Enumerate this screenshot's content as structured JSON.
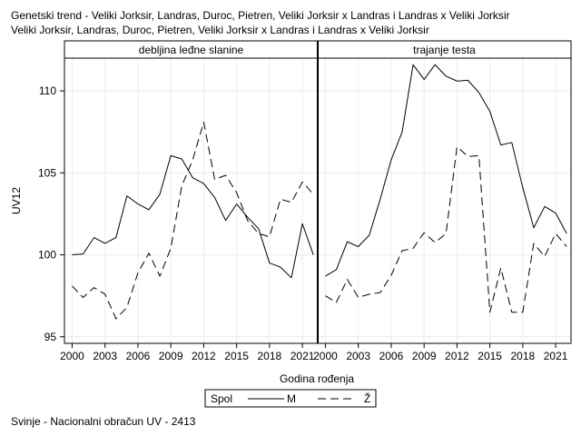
{
  "title_lines": [
    "Genetski trend - Veliki Jorksir, Landras, Duroc, Pietren, Veliki Jorksir x Landras i Landras x Veliki Jorksir",
    "Veliki Jorksir, Landras, Duroc, Pietren, Veliki Jorksir x Landras i Landras x Veliki Jorksir"
  ],
  "footnote": "Svinje - Nacionalni obračun UV - 2413",
  "legend": {
    "title": "Spol",
    "entries": [
      {
        "label": "M",
        "dash": "solid"
      },
      {
        "label": "Ž",
        "dash": "dashed"
      }
    ]
  },
  "chart_data": {
    "type": "line",
    "xlabel": "Godina rođenja",
    "ylabel": "UV12",
    "xlim": [
      1999.3,
      2022.4
    ],
    "ylim": [
      94.6,
      112
    ],
    "xticks": [
      2000,
      2003,
      2006,
      2009,
      2012,
      2015,
      2018,
      2021
    ],
    "yticks": [
      95,
      100,
      105,
      110
    ],
    "grid": true,
    "panels": [
      {
        "label": "debljina leđne slanine",
        "series": [
          {
            "name": "M",
            "dash": "solid",
            "x": [
              2000,
              2001,
              2002,
              2003,
              2004,
              2005,
              2006,
              2007,
              2008,
              2009,
              2010,
              2011,
              2012,
              2013,
              2014,
              2015,
              2016,
              2017,
              2018,
              2019,
              2020,
              2021,
              2022
            ],
            "y": [
              100.0,
              100.05,
              101.05,
              100.7,
              101.05,
              103.6,
              103.1,
              102.75,
              103.7,
              106.05,
              105.85,
              104.7,
              104.35,
              103.5,
              102.1,
              103.1,
              102.3,
              101.6,
              99.5,
              99.25,
              98.6,
              101.9,
              100.0
            ]
          },
          {
            "name": "Ž",
            "dash": "dashed",
            "x": [
              2000,
              2001,
              2002,
              2003,
              2004,
              2005,
              2006,
              2007,
              2008,
              2009,
              2010,
              2011,
              2012,
              2013,
              2014,
              2015,
              2016,
              2017,
              2018,
              2019,
              2020,
              2021,
              2022
            ],
            "y": [
              98.1,
              97.4,
              98.0,
              97.6,
              96.1,
              96.8,
              98.9,
              100.1,
              98.7,
              100.4,
              104.2,
              105.8,
              108.1,
              104.6,
              104.85,
              103.8,
              102.1,
              101.3,
              101.1,
              103.4,
              103.2,
              104.45,
              103.7
            ]
          }
        ]
      },
      {
        "label": "trajanje testa",
        "series": [
          {
            "name": "M",
            "dash": "solid",
            "x": [
              2000,
              2001,
              2002,
              2003,
              2004,
              2005,
              2006,
              2007,
              2008,
              2009,
              2010,
              2011,
              2012,
              2013,
              2014,
              2015,
              2016,
              2017,
              2018,
              2019,
              2020,
              2021,
              2022
            ],
            "y": [
              98.7,
              99.1,
              100.8,
              100.5,
              101.2,
              103.4,
              105.8,
              107.5,
              111.6,
              110.7,
              111.6,
              110.9,
              110.6,
              110.65,
              109.9,
              108.75,
              106.7,
              106.85,
              104.1,
              101.65,
              102.95,
              102.55,
              101.3
            ]
          },
          {
            "name": "Ž",
            "dash": "dashed",
            "x": [
              2000,
              2001,
              2002,
              2003,
              2004,
              2005,
              2006,
              2007,
              2008,
              2009,
              2010,
              2011,
              2012,
              2013,
              2014,
              2015,
              2016,
              2017,
              2018,
              2019,
              2020,
              2021,
              2022
            ],
            "y": [
              97.5,
              97.1,
              98.5,
              97.4,
              97.6,
              97.7,
              98.75,
              100.25,
              100.4,
              101.35,
              100.75,
              101.3,
              106.6,
              106.0,
              106.05,
              96.5,
              99.2,
              96.5,
              96.5,
              100.7,
              99.9,
              101.3,
              100.5
            ]
          }
        ]
      }
    ]
  }
}
